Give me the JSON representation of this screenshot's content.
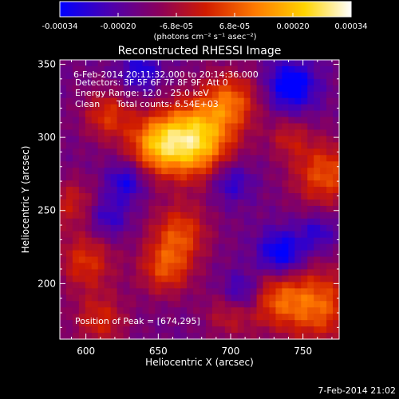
{
  "colorbar": {
    "tick_labels": [
      "-0.00034",
      "-0.00020",
      "-6.8e-05",
      "6.8e-05",
      "0.00020",
      "0.00034"
    ],
    "units": "(photons cm⁻² s⁻¹ asec⁻²)",
    "colors": [
      "#0000ff",
      "#4b00b0",
      "#8a005c",
      "#d01b00",
      "#ff7a00",
      "#ffd400",
      "#ffffff"
    ]
  },
  "title": "Reconstructed RHESSI Image",
  "info": {
    "time_range": "6-Feb-2014 20:11:32.000 to 20:14:36.000",
    "detectors": "Detectors: 3F 5F 6F 7F 8F 9F, Att 0",
    "energy": "Energy Range: 12.0 - 25.0 keV",
    "method": "Clean",
    "counts": "Total counts: 6.54E+03",
    "peak": "Position of Peak = [674,295]"
  },
  "footer": {
    "date": "7-Feb-2014 21:02"
  },
  "chart_data": {
    "type": "heatmap",
    "title": "Reconstructed RHESSI Image",
    "xlabel": "Heliocentric X (arcsec)",
    "ylabel": "Heliocentric Y (arcsec)",
    "xlim": [
      582,
      775
    ],
    "ylim": [
      162,
      353
    ],
    "x_ticks": [
      600,
      650,
      700,
      750
    ],
    "y_ticks": [
      200,
      250,
      300,
      350
    ],
    "colorbar_range": [
      -0.00034,
      0.00034
    ],
    "peak": [
      674,
      295
    ],
    "blobs": [
      {
        "x": 675,
        "y": 298,
        "sigma": 18,
        "amp": 1.0
      },
      {
        "x": 648,
        "y": 295,
        "sigma": 14,
        "amp": 0.65
      },
      {
        "x": 700,
        "y": 325,
        "sigma": 14,
        "amp": 0.55
      },
      {
        "x": 615,
        "y": 315,
        "sigma": 12,
        "amp": 0.45
      },
      {
        "x": 765,
        "y": 275,
        "sigma": 16,
        "amp": 0.55
      },
      {
        "x": 760,
        "y": 185,
        "sigma": 18,
        "amp": 0.6
      },
      {
        "x": 730,
        "y": 190,
        "sigma": 14,
        "amp": 0.45
      },
      {
        "x": 665,
        "y": 235,
        "sigma": 14,
        "amp": 0.5
      },
      {
        "x": 655,
        "y": 210,
        "sigma": 13,
        "amp": 0.5
      },
      {
        "x": 600,
        "y": 215,
        "sigma": 14,
        "amp": 0.45
      },
      {
        "x": 610,
        "y": 175,
        "sigma": 13,
        "amp": 0.4
      },
      {
        "x": 700,
        "y": 180,
        "sigma": 12,
        "amp": 0.35
      },
      {
        "x": 590,
        "y": 255,
        "sigma": 12,
        "amp": 0.35
      },
      {
        "x": 740,
        "y": 300,
        "sigma": 10,
        "amp": 0.3
      },
      {
        "x": 700,
        "y": 270,
        "sigma": 10,
        "amp": -0.35
      },
      {
        "x": 742,
        "y": 335,
        "sigma": 12,
        "amp": -0.55
      },
      {
        "x": 735,
        "y": 220,
        "sigma": 11,
        "amp": -0.55
      },
      {
        "x": 708,
        "y": 193,
        "sigma": 10,
        "amp": -0.45
      },
      {
        "x": 628,
        "y": 270,
        "sigma": 9,
        "amp": -0.4
      },
      {
        "x": 638,
        "y": 345,
        "sigma": 10,
        "amp": -0.35
      },
      {
        "x": 615,
        "y": 245,
        "sigma": 10,
        "amp": -0.3
      },
      {
        "x": 760,
        "y": 235,
        "sigma": 9,
        "amp": -0.3
      }
    ]
  }
}
